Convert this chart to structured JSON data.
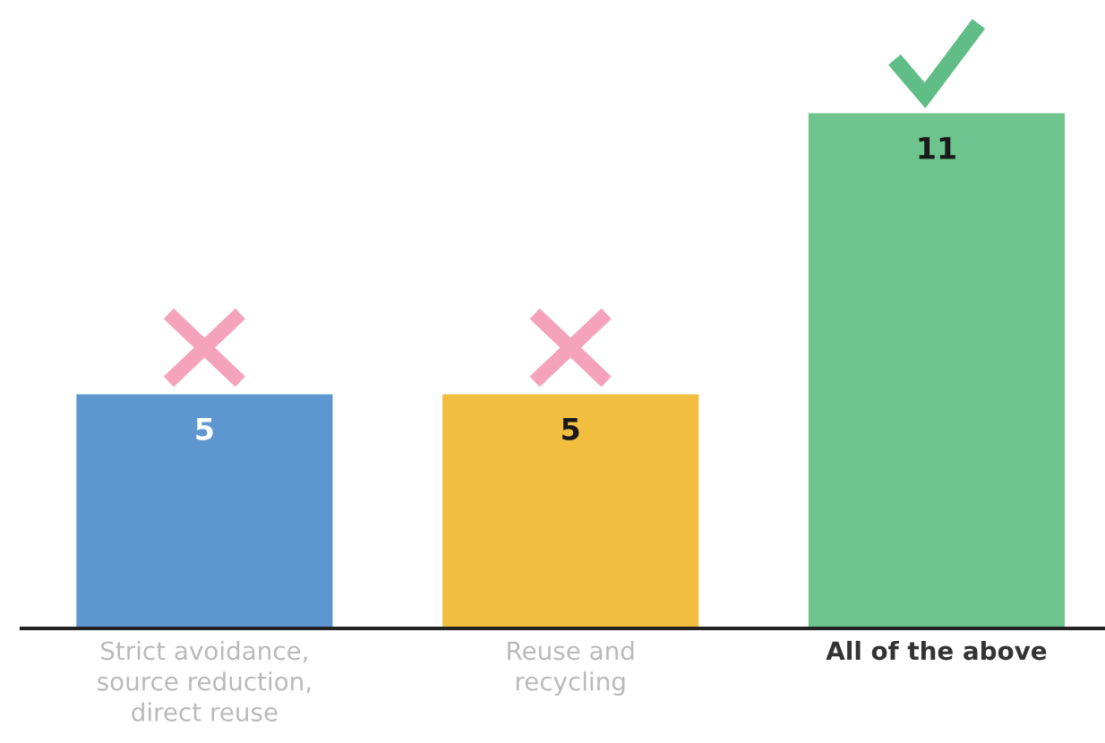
{
  "chart_data": {
    "type": "bar",
    "categories": [
      "Strict avoidance,\nsource reduction,\ndirect reuse",
      "Reuse and\nrecycling",
      "All of the above"
    ],
    "values": [
      5,
      5,
      11
    ],
    "colors": [
      "#5e96d0",
      "#f1be40",
      "#6dc48d"
    ],
    "data_labels": true,
    "tick_labels": "x"
  }
}
